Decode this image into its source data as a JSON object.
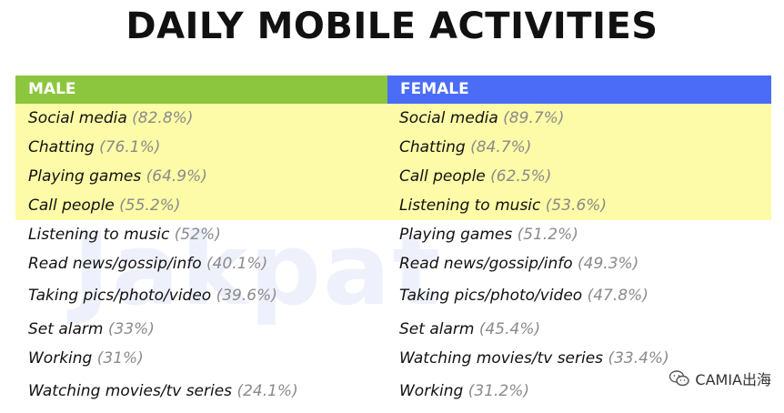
{
  "title": "DAILY MOBILE ACTIVITIES",
  "watermark": "Jakpat",
  "brand": "CAMIA出海",
  "colors": {
    "male_header": "#8cc63f",
    "female_header": "#4a6cf7",
    "highlight": "#fdfba7"
  },
  "chart_data": {
    "type": "table",
    "title": "DAILY MOBILE ACTIVITIES",
    "highlighted_top_rows": 4,
    "columns": [
      {
        "header": "MALE",
        "rows": [
          {
            "label": "Social media",
            "value": 82.8,
            "text": "(82.8%)"
          },
          {
            "label": "Chatting",
            "value": 76.1,
            "text": "(76.1%)"
          },
          {
            "label": "Playing games",
            "value": 64.9,
            "text": "(64.9%)"
          },
          {
            "label": "Call people",
            "value": 55.2,
            "text": "(55.2%)"
          },
          {
            "label": "Listening to music",
            "value": 52,
            "text": "(52%)"
          },
          {
            "label": "Read news/gossip/info",
            "value": 40.1,
            "text": "(40.1%)"
          },
          {
            "label": "Taking pics/photo/video",
            "value": 39.6,
            "text": "(39.6%)"
          },
          {
            "label": "Set alarm",
            "value": 33,
            "text": "(33%)"
          },
          {
            "label": "Working",
            "value": 31,
            "text": "(31%)"
          },
          {
            "label": "Watching movies/tv series",
            "value": 24.1,
            "text": "(24.1%)"
          }
        ]
      },
      {
        "header": "FEMALE",
        "rows": [
          {
            "label": "Social media",
            "value": 89.7,
            "text": "(89.7%)"
          },
          {
            "label": "Chatting",
            "value": 84.7,
            "text": "(84.7%)"
          },
          {
            "label": "Call people",
            "value": 62.5,
            "text": "(62.5%)"
          },
          {
            "label": "Listening to music",
            "value": 53.6,
            "text": "(53.6%)"
          },
          {
            "label": "Playing games",
            "value": 51.2,
            "text": "(51.2%)"
          },
          {
            "label": "Read news/gossip/info",
            "value": 49.3,
            "text": "(49.3%)"
          },
          {
            "label": "Taking pics/photo/video",
            "value": 47.8,
            "text": "(47.8%)"
          },
          {
            "label": "Set alarm",
            "value": 45.4,
            "text": "(45.4%)"
          },
          {
            "label": "Watching movies/tv series",
            "value": 33.4,
            "text": "(33.4%)"
          },
          {
            "label": "Working",
            "value": 31.2,
            "text": "(31.2%)"
          }
        ]
      }
    ]
  }
}
